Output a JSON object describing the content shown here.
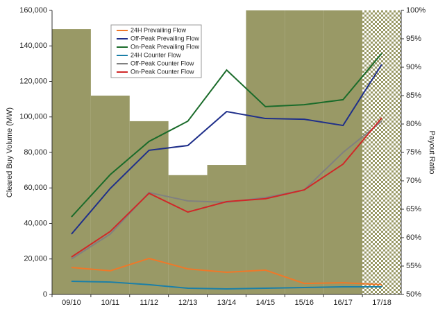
{
  "chart_data": {
    "type": "combo",
    "categories": [
      "09/10",
      "10/11",
      "11/12",
      "12/13",
      "13/14",
      "14/15",
      "15/16",
      "16/17",
      "17/18"
    ],
    "ylabel": "Cleared Buy Volume (MW)",
    "y2label": "Payout Ratio",
    "ylim": [
      0,
      160000
    ],
    "yticks": [
      0,
      {
        "value": 20000,
        "label": "20,000"
      },
      {
        "value": 40000,
        "label": "40,000"
      },
      {
        "value": 60000,
        "label": "60,000"
      },
      {
        "value": 80000,
        "label": "80,000"
      },
      {
        "value": 100000,
        "label": "100,000"
      },
      {
        "value": 120000,
        "label": "120,000"
      },
      {
        "value": 140000,
        "label": "140,000"
      },
      {
        "value": 160000,
        "label": "160,000"
      }
    ],
    "y2lim": [
      50,
      100
    ],
    "y2ticks": [
      {
        "value": 50,
        "label": "50%"
      },
      {
        "value": 55,
        "label": "55%"
      },
      {
        "value": 60,
        "label": "60%"
      },
      {
        "value": 65,
        "label": "65%"
      },
      {
        "value": 70,
        "label": "70%"
      },
      {
        "value": 75,
        "label": "75%"
      },
      {
        "value": 80,
        "label": "80%"
      },
      {
        "value": 85,
        "label": "85%"
      },
      {
        "value": 90,
        "label": "90%"
      },
      {
        "value": 95,
        "label": "95%"
      },
      {
        "value": 100,
        "label": "100%"
      }
    ],
    "bars": {
      "axis": "y2",
      "color": "#999966",
      "values": [
        96.7,
        85,
        80.5,
        71,
        72.8,
        100,
        100,
        100,
        100
      ],
      "patterns": [
        "solid",
        "solid",
        "solid",
        "solid",
        "solid",
        "solid",
        "solid",
        "solid",
        "checker"
      ]
    },
    "series": [
      {
        "name": "24H Prevailing Flow",
        "color": "#f07828",
        "values": [
          15200,
          13300,
          20300,
          14400,
          12500,
          13700,
          6200,
          6600,
          5500
        ]
      },
      {
        "name": "Off-Peak Prevailing Flow",
        "color": "#1f2f8a",
        "values": [
          34000,
          59700,
          81200,
          83900,
          103000,
          99100,
          98700,
          95200,
          129600
        ]
      },
      {
        "name": "On-Peak Prevailing Flow",
        "color": "#1a6b2a",
        "values": [
          43700,
          67500,
          86200,
          97600,
          126400,
          105800,
          106900,
          109700,
          135800
        ]
      },
      {
        "name": "24H Counter Flow",
        "color": "#1a7fa8",
        "values": [
          7400,
          7000,
          5500,
          3500,
          3100,
          3500,
          3900,
          4300,
          4300
        ]
      },
      {
        "name": "Off-Peak Counter Flow",
        "color": "#808080",
        "values": [
          20000,
          34000,
          57400,
          52700,
          51900,
          54600,
          58900,
          80000,
          97600
        ]
      },
      {
        "name": "On-Peak Counter Flow",
        "color": "#d02828",
        "values": [
          21100,
          35500,
          57000,
          46400,
          52300,
          53900,
          58900,
          73400,
          99500
        ]
      }
    ]
  }
}
